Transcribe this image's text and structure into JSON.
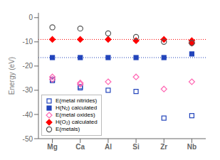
{
  "chart_data": {
    "type": "scatter",
    "y_label": "Energy (eV)",
    "categories": [
      "Mg",
      "Ca",
      "Al",
      "Si",
      "Zr",
      "Nb"
    ],
    "ylim": [
      -50,
      2
    ],
    "yticks": [
      0,
      -10,
      -20,
      -30,
      -40,
      -50
    ],
    "legend": "lower left",
    "series": [
      {
        "name": "E(metal nitrides)",
        "color": "#2244BB",
        "marker": "open-square",
        "values": [
          [
            -26.0,
            -25.5
          ],
          [
            -28.5,
            -29.0
          ],
          [
            -30.0,
            null
          ],
          [
            -30.5,
            null
          ],
          [
            -41.5,
            null
          ],
          [
            -40.5,
            null
          ]
        ]
      },
      {
        "name": "H(N₂) calculated",
        "color": "#2244BB",
        "marker": "filled-square",
        "values": [
          [
            -16.5
          ],
          [
            -16.5
          ],
          [
            -16.5
          ],
          [
            -16.5
          ],
          [
            -16.5
          ],
          [
            -15.0
          ]
        ]
      },
      {
        "name": "E(metal oxides)",
        "color": "#FF69B4",
        "marker": "open-diamond",
        "values": [
          [
            -24.5,
            -25.5
          ],
          [
            -27.0,
            -27.5
          ],
          [
            -26.5,
            null
          ],
          [
            -24.5,
            null
          ],
          [
            -29.5,
            null
          ],
          [
            -26.5,
            null
          ]
        ]
      },
      {
        "name": "H(O₂) calculated",
        "color": "#FF0000",
        "marker": "filled-diamond",
        "values": [
          [
            -9.0
          ],
          [
            -9.0
          ],
          [
            -9.0
          ],
          [
            -9.5
          ],
          [
            -9.0
          ],
          [
            -9.5,
            -10.5
          ]
        ]
      },
      {
        "name": "E(metals)",
        "color": "#555555",
        "marker": "open-circle",
        "values": [
          [
            -4.0
          ],
          [
            -4.5
          ],
          [
            -6.5
          ],
          [
            -8.0
          ],
          [
            -10.0
          ],
          [
            -10.5
          ]
        ]
      }
    ],
    "reference_lines": [
      {
        "y": -9.0,
        "color": "#FF0000",
        "line_style": "dotted"
      },
      {
        "y": -16.5,
        "color": "#2244BB",
        "line_style": "dotted"
      }
    ]
  }
}
